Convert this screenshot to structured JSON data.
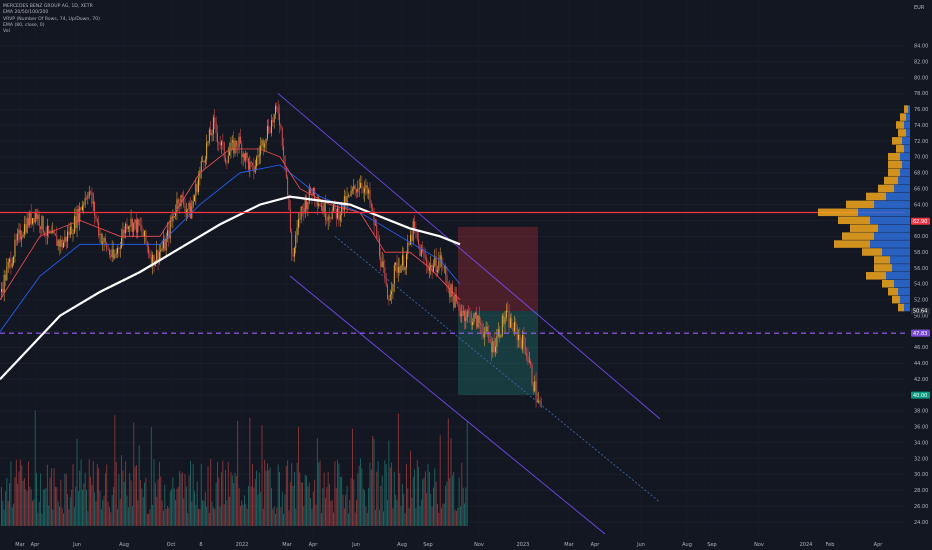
{
  "colors": {
    "background": "#131722",
    "up": "#26a69a",
    "down": "#ef5350",
    "candle_up": "#f4b63a",
    "ema20": "#f44f52",
    "ema50": "#2962ff",
    "ema200": "#ffffff",
    "resistance": "#f23645",
    "support": "#9c5cf7",
    "channel": "#7c4dff",
    "vp_up": "#2e6fdc",
    "vp_down": "#f2a71d"
  },
  "legend": {
    "symbol": "MERCEDES BENZ GROUP AG, 1D, XETR",
    "ema_multi": "EMA 20/50/100/200",
    "vrvp": "VRVP (Number Of Rows, 74, Up/Down, 70)",
    "ema_single": "EMA (80, close, 0)",
    "volume": "Vol"
  },
  "currency_label": "EUR",
  "chart_data": {
    "type": "candlestick",
    "title": "MERCEDES BENZ GROUP AG, 1D, XETR",
    "x_ticks": [
      "Mar",
      "Apr",
      "Jun",
      "Aug",
      "Oct",
      "8",
      "2022",
      "Mar",
      "Apr",
      "Jun",
      "Aug",
      "Sep",
      "Nov",
      "2023",
      "Mar",
      "Apr",
      "Jun",
      "Aug",
      "Sep",
      "Nov",
      "2024",
      "Feb",
      "Apr"
    ],
    "y_ticks": [
      84,
      82,
      80,
      78,
      76,
      74,
      72,
      70,
      68,
      66,
      64,
      62,
      60,
      58,
      56,
      54,
      52,
      50,
      48,
      46,
      44,
      42,
      40,
      38,
      36,
      34,
      32,
      30,
      28,
      26,
      24
    ],
    "ylim": [
      22.5,
      87
    ],
    "price_path": [
      [
        0,
        53
      ],
      [
        10,
        57
      ],
      [
        22,
        61
      ],
      [
        35,
        63
      ],
      [
        48,
        60
      ],
      [
        62,
        59
      ],
      [
        75,
        62
      ],
      [
        88,
        66
      ],
      [
        100,
        60
      ],
      [
        113,
        57
      ],
      [
        127,
        62
      ],
      [
        140,
        61
      ],
      [
        152,
        57
      ],
      [
        165,
        59
      ],
      [
        178,
        65
      ],
      [
        190,
        63
      ],
      [
        203,
        70
      ],
      [
        213,
        74
      ],
      [
        225,
        70
      ],
      [
        238,
        72
      ],
      [
        252,
        68
      ],
      [
        265,
        73
      ],
      [
        278,
        76
      ],
      [
        285,
        69
      ],
      [
        292,
        57
      ],
      [
        300,
        63
      ],
      [
        312,
        66
      ],
      [
        325,
        63
      ],
      [
        338,
        63
      ],
      [
        350,
        65
      ],
      [
        360,
        67
      ],
      [
        368,
        65
      ],
      [
        378,
        59
      ],
      [
        387,
        52
      ],
      [
        395,
        56
      ],
      [
        405,
        57
      ],
      [
        413,
        61
      ],
      [
        420,
        58
      ],
      [
        430,
        56
      ],
      [
        440,
        57
      ],
      [
        450,
        53
      ],
      [
        457,
        51
      ],
      [
        468,
        50
      ],
      [
        480,
        49
      ],
      [
        492,
        46
      ],
      [
        505,
        50
      ],
      [
        515,
        48
      ],
      [
        525,
        46
      ],
      [
        532,
        42
      ],
      [
        538,
        39
      ],
      [
        542,
        38
      ]
    ],
    "ema_fast": [
      [
        0,
        52
      ],
      [
        40,
        60
      ],
      [
        80,
        62
      ],
      [
        120,
        60
      ],
      [
        160,
        60
      ],
      [
        200,
        68
      ],
      [
        230,
        71
      ],
      [
        260,
        71
      ],
      [
        280,
        70
      ],
      [
        300,
        66
      ],
      [
        330,
        64
      ],
      [
        360,
        63
      ],
      [
        385,
        58
      ],
      [
        410,
        58
      ],
      [
        430,
        56
      ],
      [
        460,
        52
      ]
    ],
    "ema_mid": [
      [
        0,
        48
      ],
      [
        40,
        55
      ],
      [
        80,
        59
      ],
      [
        120,
        59
      ],
      [
        160,
        59
      ],
      [
        200,
        64
      ],
      [
        240,
        68
      ],
      [
        280,
        69
      ],
      [
        320,
        65
      ],
      [
        360,
        63
      ],
      [
        400,
        60
      ],
      [
        440,
        57
      ],
      [
        460,
        54
      ]
    ],
    "ema_slow": [
      [
        0,
        42
      ],
      [
        30,
        46
      ],
      [
        60,
        50
      ],
      [
        100,
        53
      ],
      [
        140,
        55.5
      ],
      [
        180,
        58.5
      ],
      [
        220,
        61.5
      ],
      [
        260,
        64
      ],
      [
        290,
        65
      ],
      [
        320,
        64.5
      ],
      [
        350,
        64
      ],
      [
        380,
        62.5
      ],
      [
        410,
        61
      ],
      [
        440,
        60
      ],
      [
        460,
        59
      ]
    ],
    "resistance_level": 63,
    "support_level": 47.8,
    "price_label": "50.64",
    "price_label_secondary": "50.64",
    "tag_current": "50.64",
    "tag_resistance": "62.90",
    "tag_support": "47.83",
    "tag_target": "40.00",
    "position_box": {
      "entry": 50.6,
      "stop": 61.2,
      "target": 40.0
    },
    "volume_profile": [
      {
        "price": 76,
        "up": 1,
        "down": 2
      },
      {
        "price": 75,
        "up": 2,
        "down": 3
      },
      {
        "price": 74,
        "up": 3,
        "down": 4
      },
      {
        "price": 73,
        "up": 2,
        "down": 4
      },
      {
        "price": 72,
        "up": 4,
        "down": 5
      },
      {
        "price": 71,
        "up": 3,
        "down": 4
      },
      {
        "price": 70,
        "up": 5,
        "down": 6
      },
      {
        "price": 69,
        "up": 4,
        "down": 7
      },
      {
        "price": 68,
        "up": 5,
        "down": 6
      },
      {
        "price": 67,
        "up": 6,
        "down": 7
      },
      {
        "price": 66,
        "up": 8,
        "down": 8
      },
      {
        "price": 65,
        "up": 12,
        "down": 10
      },
      {
        "price": 64,
        "up": 18,
        "down": 14
      },
      {
        "price": 63,
        "up": 26,
        "down": 20
      },
      {
        "price": 62,
        "up": 20,
        "down": 16
      },
      {
        "price": 61,
        "up": 16,
        "down": 14
      },
      {
        "price": 60,
        "up": 18,
        "down": 16
      },
      {
        "price": 59,
        "up": 20,
        "down": 18
      },
      {
        "price": 58,
        "up": 14,
        "down": 10
      },
      {
        "price": 57,
        "up": 10,
        "down": 8
      },
      {
        "price": 56,
        "up": 9,
        "down": 9
      },
      {
        "price": 55,
        "up": 12,
        "down": 10
      },
      {
        "price": 54,
        "up": 8,
        "down": 6
      },
      {
        "price": 53,
        "up": 6,
        "down": 5
      },
      {
        "price": 52,
        "up": 5,
        "down": 4
      },
      {
        "price": 51,
        "up": 3,
        "down": 3
      }
    ]
  }
}
